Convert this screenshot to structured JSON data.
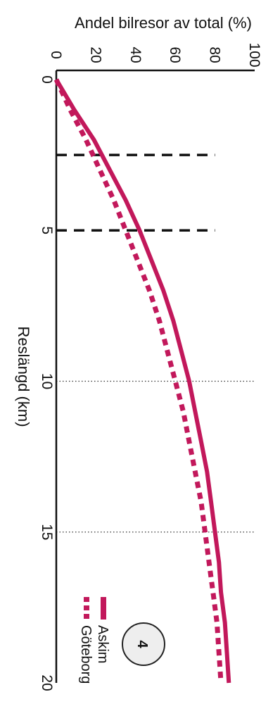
{
  "chart_data": {
    "type": "line",
    "title": "",
    "xlabel": "Reslängd (km)",
    "ylabel": "Andel bilresor av total (%)",
    "xlim": [
      0,
      20
    ],
    "ylim": [
      0,
      100
    ],
    "x_ticks": [
      "0",
      "5",
      "10",
      "15",
      "20"
    ],
    "y_ticks": [
      "0",
      "20",
      "40",
      "60",
      "80",
      "100"
    ],
    "orientation": "rotated-90-clockwise",
    "grid": "dotted lines at 10 and 15 km",
    "reference_lines_x": [
      2.5,
      5
    ],
    "series": [
      {
        "name": "Askim",
        "style": "solid",
        "color": "#c2185b",
        "points": [
          [
            0,
            0
          ],
          [
            1,
            9
          ],
          [
            2,
            19
          ],
          [
            3,
            27
          ],
          [
            4,
            35
          ],
          [
            5,
            42
          ],
          [
            6,
            48
          ],
          [
            7,
            54
          ],
          [
            8,
            59
          ],
          [
            9,
            63
          ],
          [
            10,
            67
          ],
          [
            11,
            70
          ],
          [
            12,
            73
          ],
          [
            13,
            76
          ],
          [
            14,
            78
          ],
          [
            15,
            80
          ],
          [
            16,
            82
          ],
          [
            17,
            83
          ],
          [
            18,
            85
          ],
          [
            19,
            86
          ],
          [
            20,
            87
          ]
        ]
      },
      {
        "name": "Göteborg",
        "style": "dashed",
        "color": "#c2185b",
        "points": [
          [
            0,
            0
          ],
          [
            1,
            7
          ],
          [
            2,
            15
          ],
          [
            3,
            22
          ],
          [
            4,
            29
          ],
          [
            5,
            35
          ],
          [
            6,
            41
          ],
          [
            7,
            47
          ],
          [
            8,
            52
          ],
          [
            9,
            56
          ],
          [
            10,
            60
          ],
          [
            11,
            64
          ],
          [
            12,
            67
          ],
          [
            13,
            70
          ],
          [
            14,
            73
          ],
          [
            15,
            75
          ],
          [
            16,
            77
          ],
          [
            17,
            79
          ],
          [
            18,
            81
          ],
          [
            19,
            82
          ],
          [
            20,
            83
          ]
        ]
      }
    ],
    "legend_position": "bottom-right",
    "badge": "4"
  }
}
